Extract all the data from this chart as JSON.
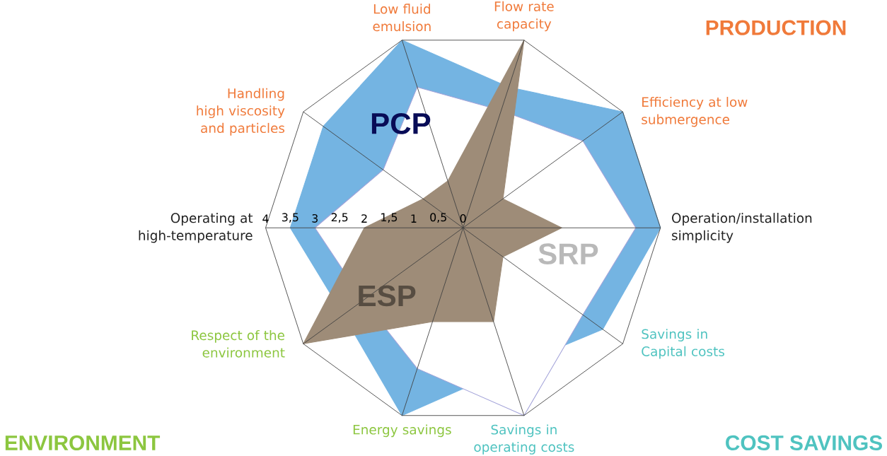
{
  "chart_data": {
    "type": "radar",
    "categories": [
      "Flow rate capacity",
      "Efficiency at low submergence",
      "Operation/installation simplicity",
      "Savings in Capital costs",
      "Savings in operating costs",
      "Energy savings",
      "Respect of the environment",
      "Operating at high-temperature",
      "Handling high viscosity and particles",
      "Low fluid emulsion"
    ],
    "series": [
      {
        "name": "PCP",
        "color": "#74b4e2",
        "values": [
          3,
          4,
          4,
          3.5,
          3,
          4,
          3,
          3.5,
          3.5,
          4
        ]
      },
      {
        "name": "SRP",
        "color": "#ffffff",
        "values": [
          2.5,
          3,
          3.5,
          3,
          4,
          3,
          2.5,
          3,
          2,
          3
        ]
      },
      {
        "name": "ESP",
        "color": "#9e8c78",
        "values": [
          4,
          1,
          2,
          1,
          2,
          2,
          4,
          2,
          1,
          1
        ]
      }
    ],
    "ylim": [
      0,
      4
    ],
    "yticks": [
      {
        "value": 0,
        "label": "0"
      },
      {
        "value": 0.5,
        "label": "0,5"
      },
      {
        "value": 1,
        "label": "1"
      },
      {
        "value": 1.5,
        "label": "1,5"
      },
      {
        "value": 2,
        "label": "2"
      },
      {
        "value": 2.5,
        "label": "2,5"
      },
      {
        "value": 3,
        "label": "3"
      },
      {
        "value": 3.5,
        "label": "3,5"
      },
      {
        "value": 4,
        "label": "4"
      }
    ],
    "grid": true,
    "annotations": [
      "PRODUCTION",
      "ENVIRONMENT",
      "COST SAVINGS"
    ]
  }
}
